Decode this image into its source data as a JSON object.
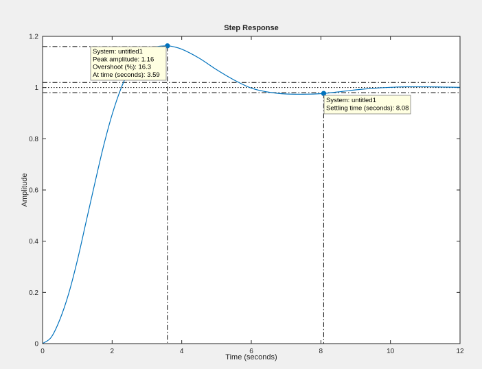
{
  "chart_data": {
    "type": "line",
    "title": "Step Response",
    "xlabel": "Time (seconds)",
    "ylabel": "Amplitude",
    "xlim": [
      0,
      12
    ],
    "ylim": [
      0,
      1.2
    ],
    "xticks": [
      0,
      2,
      4,
      6,
      8,
      10,
      12
    ],
    "yticks": [
      0,
      0.2,
      0.4,
      0.6,
      0.8,
      1,
      1.2
    ],
    "xtick_labels": [
      "0",
      "2",
      "4",
      "6",
      "8",
      "10",
      "12"
    ],
    "ytick_labels": [
      "0",
      "0.2",
      "0.4",
      "0.6",
      "0.8",
      "1",
      "1.2"
    ],
    "grid": false,
    "series": [
      {
        "color": "#0072bd",
        "x": [
          0,
          0.25,
          0.5,
          0.75,
          1.0,
          1.25,
          1.5,
          1.75,
          2.0,
          2.25,
          2.5,
          2.75,
          3.0,
          3.25,
          3.59,
          3.75,
          4.0,
          4.5,
          5.0,
          5.5,
          6.0,
          6.5,
          7.0,
          7.5,
          8.08,
          8.5,
          9.0,
          9.5,
          10.0,
          10.5,
          11.0,
          11.5,
          12.0
        ],
        "y": [
          0,
          0.025,
          0.095,
          0.195,
          0.325,
          0.475,
          0.625,
          0.77,
          0.895,
          0.995,
          1.07,
          1.12,
          1.147,
          1.159,
          1.163,
          1.16,
          1.15,
          1.115,
          1.07,
          1.03,
          0.998,
          0.982,
          0.975,
          0.974,
          0.977,
          0.983,
          0.991,
          0.997,
          1.001,
          1.003,
          1.003,
          1.002,
          1.001
        ]
      }
    ],
    "reference_lines": {
      "final_value": 1,
      "settling_band": [
        0.98,
        1.02
      ],
      "peak_amplitude": 1.16,
      "settling_time": 8.08,
      "peak_time": 3.59
    },
    "annotations": [
      {
        "point": [
          3.59,
          1.163
        ],
        "lines": [
          "System: untitled1",
          "Peak amplitude: 1.16",
          "Overshoot (%): 16.3",
          "At time (seconds): 3.59"
        ]
      },
      {
        "point": [
          8.08,
          0.977
        ],
        "lines": [
          "System: untitled1",
          "Settling time (seconds): 8.08"
        ]
      }
    ]
  }
}
